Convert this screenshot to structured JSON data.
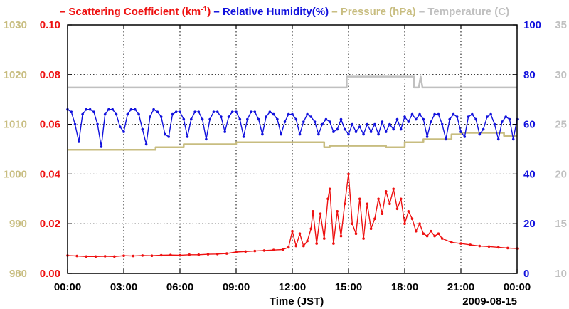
{
  "chart_data": {
    "type": "line",
    "legend": {
      "position": "top",
      "entries": [
        {
          "prefix": "–",
          "name": "Scattering Coefficient (km",
          "sup": "-1",
          "suffix": ")",
          "color": "#ee1111"
        },
        {
          "prefix": "–",
          "name": "Relative Humidity(%)",
          "color": "#1111dd"
        },
        {
          "prefix": "–",
          "name": "Pressure (hPa)",
          "color": "#c8bd80"
        },
        {
          "prefix": "–",
          "name": "Temperature (C)",
          "color": "#c0c0c0"
        }
      ]
    },
    "xlabel": "Time (JST)",
    "date": "2009-08-15",
    "x_range": [
      0,
      24
    ],
    "x_ticks": [
      0,
      3,
      6,
      9,
      12,
      15,
      18,
      21,
      24
    ],
    "x_tick_labels": [
      "00:00",
      "03:00",
      "06:00",
      "09:00",
      "12:00",
      "15:00",
      "18:00",
      "21:00",
      "00:00"
    ],
    "grid": true,
    "axes": {
      "scattering": {
        "side": "left-inner",
        "range": [
          0,
          0.1
        ],
        "ticks": [
          "0.00",
          "0.02",
          "0.04",
          "0.06",
          "0.08",
          "0.10"
        ],
        "color": "#ee1111"
      },
      "pressure": {
        "side": "left-outer",
        "range": [
          980,
          1030
        ],
        "ticks": [
          "980",
          "990",
          "1000",
          "1010",
          "1020",
          "1030"
        ],
        "color": "#c8bd80"
      },
      "humidity": {
        "side": "right-inner",
        "range": [
          0,
          100
        ],
        "ticks": [
          "0",
          "20",
          "40",
          "60",
          "80",
          "100"
        ],
        "color": "#1111dd"
      },
      "temperature": {
        "side": "right-outer",
        "range": [
          10,
          35
        ],
        "ticks": [
          "10",
          "15",
          "20",
          "25",
          "30",
          "35"
        ],
        "color": "#c0c0c0"
      }
    },
    "series": [
      {
        "name": "Temperature",
        "axis": "temperature",
        "color": "#c0c0c0",
        "style": "step",
        "points": [
          [
            0,
            28.7
          ],
          [
            14.9,
            28.7
          ],
          [
            14.9,
            29.8
          ],
          [
            18.5,
            29.8
          ],
          [
            18.5,
            28.7
          ],
          [
            18.75,
            28.7
          ],
          [
            18.85,
            29.8
          ],
          [
            18.95,
            28.7
          ],
          [
            24,
            28.7
          ]
        ]
      },
      {
        "name": "Pressure",
        "axis": "pressure",
        "color": "#c8bd80",
        "style": "step",
        "points": [
          [
            0,
            1004.9
          ],
          [
            4.7,
            1004.9
          ],
          [
            4.7,
            1005.4
          ],
          [
            6.2,
            1005.4
          ],
          [
            6.2,
            1006.0
          ],
          [
            9.0,
            1006.0
          ],
          [
            9.0,
            1006.4
          ],
          [
            13.7,
            1006.4
          ],
          [
            13.7,
            1005.4
          ],
          [
            14.0,
            1005.4
          ],
          [
            14.0,
            1005.7
          ],
          [
            17.0,
            1005.7
          ],
          [
            17.0,
            1005.4
          ],
          [
            18.0,
            1005.4
          ],
          [
            18.0,
            1006.4
          ],
          [
            19.0,
            1006.4
          ],
          [
            19.0,
            1007.0
          ],
          [
            20.5,
            1007.0
          ],
          [
            20.5,
            1008.0
          ],
          [
            21.0,
            1008.0
          ],
          [
            21.0,
            1008.3
          ],
          [
            23.3,
            1008.3
          ],
          [
            23.3,
            1007.7
          ],
          [
            24,
            1007.7
          ]
        ]
      },
      {
        "name": "Relative Humidity",
        "axis": "humidity",
        "color": "#1111dd",
        "style": "line-markers",
        "points": [
          [
            0.0,
            66.0
          ],
          [
            0.2,
            65.0
          ],
          [
            0.4,
            60.0
          ],
          [
            0.6,
            53.0
          ],
          [
            0.8,
            64.0
          ],
          [
            1.0,
            66.0
          ],
          [
            1.2,
            66.0
          ],
          [
            1.4,
            65.0
          ],
          [
            1.6,
            60.0
          ],
          [
            1.8,
            51.0
          ],
          [
            2.0,
            64.0
          ],
          [
            2.2,
            66.0
          ],
          [
            2.4,
            66.0
          ],
          [
            2.6,
            64.0
          ],
          [
            2.8,
            59.0
          ],
          [
            3.0,
            57.0
          ],
          [
            3.2,
            64.0
          ],
          [
            3.4,
            66.0
          ],
          [
            3.6,
            66.0
          ],
          [
            3.8,
            64.0
          ],
          [
            4.0,
            58.0
          ],
          [
            4.2,
            52.0
          ],
          [
            4.4,
            63.0
          ],
          [
            4.6,
            66.0
          ],
          [
            4.8,
            65.0
          ],
          [
            5.0,
            63.0
          ],
          [
            5.2,
            56.0
          ],
          [
            5.4,
            55.0
          ],
          [
            5.6,
            64.0
          ],
          [
            5.8,
            65.0
          ],
          [
            6.0,
            65.0
          ],
          [
            6.2,
            62.0
          ],
          [
            6.4,
            55.0
          ],
          [
            6.6,
            62.0
          ],
          [
            6.8,
            65.0
          ],
          [
            7.0,
            65.0
          ],
          [
            7.2,
            62.0
          ],
          [
            7.4,
            54.0
          ],
          [
            7.6,
            62.0
          ],
          [
            7.8,
            65.0
          ],
          [
            8.0,
            65.0
          ],
          [
            8.2,
            63.0
          ],
          [
            8.4,
            57.0
          ],
          [
            8.6,
            63.0
          ],
          [
            8.8,
            65.0
          ],
          [
            9.0,
            65.0
          ],
          [
            9.2,
            62.0
          ],
          [
            9.4,
            55.0
          ],
          [
            9.6,
            62.0
          ],
          [
            9.8,
            65.0
          ],
          [
            10.0,
            65.0
          ],
          [
            10.2,
            62.0
          ],
          [
            10.4,
            56.0
          ],
          [
            10.6,
            63.0
          ],
          [
            10.8,
            65.0
          ],
          [
            11.0,
            64.0
          ],
          [
            11.2,
            62.0
          ],
          [
            11.4,
            56.0
          ],
          [
            11.6,
            61.0
          ],
          [
            11.8,
            64.0
          ],
          [
            12.0,
            64.0
          ],
          [
            12.2,
            62.0
          ],
          [
            12.4,
            56.0
          ],
          [
            12.6,
            61.0
          ],
          [
            12.8,
            64.0
          ],
          [
            13.0,
            63.0
          ],
          [
            13.2,
            61.0
          ],
          [
            13.4,
            56.0
          ],
          [
            13.6,
            60.0
          ],
          [
            13.8,
            62.0
          ],
          [
            14.0,
            61.0
          ],
          [
            14.2,
            57.0
          ],
          [
            14.4,
            58.0
          ],
          [
            14.6,
            62.0
          ],
          [
            14.8,
            58.0
          ],
          [
            15.0,
            56.0
          ],
          [
            15.2,
            60.0
          ],
          [
            15.4,
            57.0
          ],
          [
            15.6,
            59.0
          ],
          [
            15.8,
            56.0
          ],
          [
            16.0,
            60.0
          ],
          [
            16.2,
            57.0
          ],
          [
            16.4,
            60.0
          ],
          [
            16.6,
            56.0
          ],
          [
            16.8,
            61.0
          ],
          [
            17.0,
            57.0
          ],
          [
            17.2,
            60.0
          ],
          [
            17.4,
            58.0
          ],
          [
            17.6,
            62.0
          ],
          [
            17.8,
            58.0
          ],
          [
            18.0,
            63.0
          ],
          [
            18.2,
            61.0
          ],
          [
            18.4,
            64.0
          ],
          [
            18.6,
            62.0
          ],
          [
            18.8,
            64.0
          ],
          [
            19.0,
            62.0
          ],
          [
            19.2,
            55.0
          ],
          [
            19.4,
            61.0
          ],
          [
            19.6,
            64.0
          ],
          [
            19.8,
            64.0
          ],
          [
            20.0,
            60.0
          ],
          [
            20.2,
            54.0
          ],
          [
            20.4,
            62.0
          ],
          [
            20.6,
            64.0
          ],
          [
            20.8,
            63.0
          ],
          [
            21.0,
            57.0
          ],
          [
            21.2,
            55.0
          ],
          [
            21.4,
            63.0
          ],
          [
            21.6,
            64.0
          ],
          [
            21.8,
            62.0
          ],
          [
            22.0,
            56.0
          ],
          [
            22.2,
            58.0
          ],
          [
            22.4,
            63.0
          ],
          [
            22.6,
            64.0
          ],
          [
            22.8,
            60.0
          ],
          [
            23.0,
            54.0
          ],
          [
            23.2,
            61.0
          ],
          [
            23.4,
            63.0
          ],
          [
            23.6,
            62.0
          ],
          [
            23.8,
            54.0
          ],
          [
            24.0,
            62.0
          ]
        ]
      },
      {
        "name": "Scattering Coefficient",
        "axis": "scattering",
        "color": "#ee1111",
        "style": "line-markers",
        "points": [
          [
            0.0,
            0.0072
          ],
          [
            0.5,
            0.007
          ],
          [
            1.0,
            0.0068
          ],
          [
            1.5,
            0.0068
          ],
          [
            2.0,
            0.0069
          ],
          [
            2.5,
            0.0068
          ],
          [
            3.0,
            0.0071
          ],
          [
            3.5,
            0.007
          ],
          [
            4.0,
            0.0072
          ],
          [
            4.5,
            0.0071
          ],
          [
            5.0,
            0.0073
          ],
          [
            5.5,
            0.0074
          ],
          [
            6.0,
            0.0073
          ],
          [
            6.5,
            0.0075
          ],
          [
            7.0,
            0.0075
          ],
          [
            7.5,
            0.0077
          ],
          [
            8.0,
            0.0078
          ],
          [
            8.5,
            0.008
          ],
          [
            9.0,
            0.0086
          ],
          [
            9.5,
            0.0088
          ],
          [
            10.0,
            0.009
          ],
          [
            10.5,
            0.0092
          ],
          [
            11.0,
            0.0094
          ],
          [
            11.5,
            0.0096
          ],
          [
            11.8,
            0.0105
          ],
          [
            12.0,
            0.017
          ],
          [
            12.2,
            0.011
          ],
          [
            12.4,
            0.016
          ],
          [
            12.6,
            0.011
          ],
          [
            12.8,
            0.013
          ],
          [
            13.0,
            0.018
          ],
          [
            13.1,
            0.025
          ],
          [
            13.3,
            0.012
          ],
          [
            13.5,
            0.024
          ],
          [
            13.7,
            0.014
          ],
          [
            13.9,
            0.03
          ],
          [
            14.0,
            0.034
          ],
          [
            14.2,
            0.012
          ],
          [
            14.4,
            0.025
          ],
          [
            14.6,
            0.015
          ],
          [
            14.8,
            0.028
          ],
          [
            15.0,
            0.04
          ],
          [
            15.2,
            0.02
          ],
          [
            15.4,
            0.016
          ],
          [
            15.6,
            0.03
          ],
          [
            15.8,
            0.014
          ],
          [
            16.0,
            0.028
          ],
          [
            16.2,
            0.018
          ],
          [
            16.4,
            0.022
          ],
          [
            16.6,
            0.03
          ],
          [
            16.8,
            0.024
          ],
          [
            17.0,
            0.033
          ],
          [
            17.2,
            0.028
          ],
          [
            17.4,
            0.034
          ],
          [
            17.6,
            0.026
          ],
          [
            17.8,
            0.03
          ],
          [
            18.0,
            0.02
          ],
          [
            18.2,
            0.025
          ],
          [
            18.4,
            0.022
          ],
          [
            18.6,
            0.017
          ],
          [
            18.8,
            0.02
          ],
          [
            19.0,
            0.016
          ],
          [
            19.2,
            0.015
          ],
          [
            19.4,
            0.017
          ],
          [
            19.6,
            0.015
          ],
          [
            19.8,
            0.016
          ],
          [
            20.0,
            0.014
          ],
          [
            20.5,
            0.0125
          ],
          [
            21.0,
            0.012
          ],
          [
            21.5,
            0.0115
          ],
          [
            22.0,
            0.011
          ],
          [
            22.5,
            0.0108
          ],
          [
            23.0,
            0.0105
          ],
          [
            23.5,
            0.0102
          ],
          [
            24.0,
            0.01
          ]
        ]
      }
    ]
  }
}
